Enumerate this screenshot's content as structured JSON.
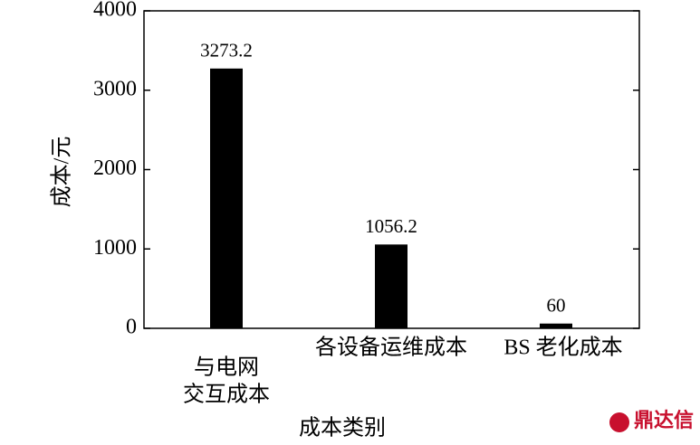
{
  "chart_data": {
    "type": "bar",
    "categories": [
      [
        "与电网",
        "交互成本"
      ],
      [
        "各设备运维成本"
      ],
      [
        "BS 老化成本"
      ]
    ],
    "values": [
      3273.2,
      1056.2,
      60
    ],
    "color": "#000000",
    "ylabel": "成本/元",
    "xlabel": "成本类别",
    "ylim": [
      0,
      4000
    ],
    "yticks": [
      0,
      1000,
      2000,
      3000,
      4000
    ],
    "grid": false
  },
  "watermark": "鼎达信"
}
